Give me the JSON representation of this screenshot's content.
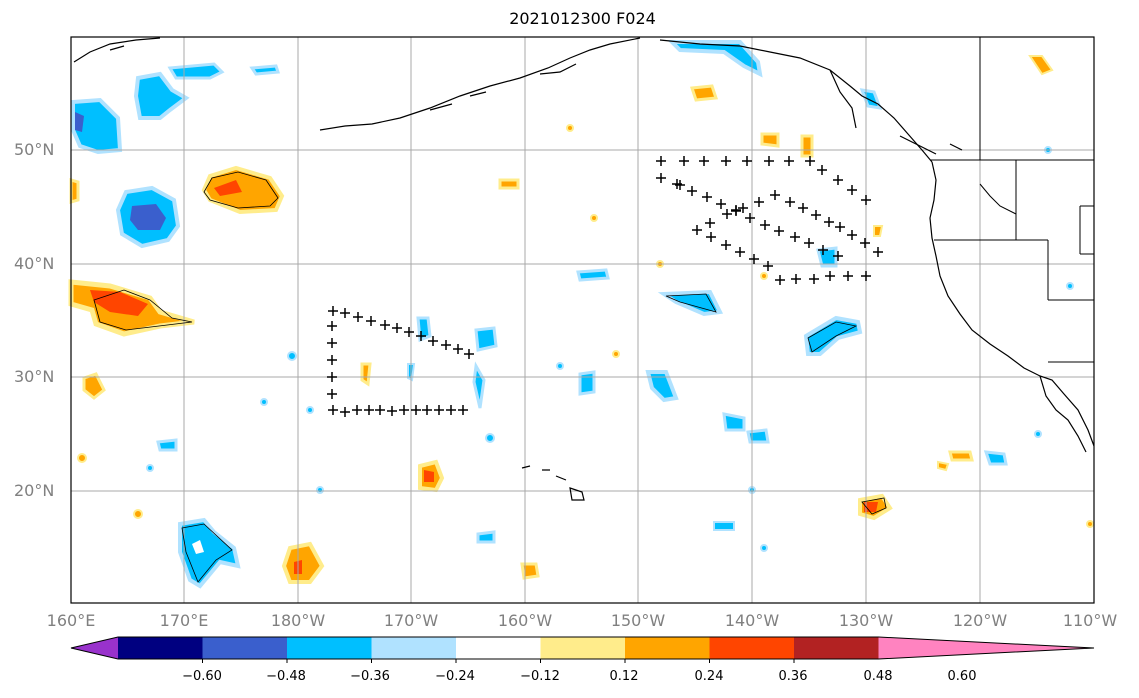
{
  "title": "2021012300 F024",
  "lat_labels": [
    "50°N",
    "40°N",
    "30°N",
    "20°N"
  ],
  "lon_labels": [
    "160°E",
    "170°E",
    "180°W",
    "170°W",
    "160°W",
    "150°W",
    "140°W",
    "130°W",
    "120°W",
    "110°W"
  ],
  "colorbar": {
    "colors": [
      "#9932cc",
      "#000080",
      "#3a5fcd",
      "#00bfff",
      "#b0e2ff",
      "#ffffff",
      "#ffec8b",
      "#ffa500",
      "#ff4500",
      "#b22222",
      "#ff83c0"
    ],
    "tick_labels": [
      "−0.60",
      "−0.48",
      "−0.36",
      "−0.24",
      "−0.12",
      "0.12",
      "0.24",
      "0.36",
      "0.48",
      "0.60"
    ]
  },
  "map": {
    "lon_range": [
      "160°E",
      "110°W"
    ],
    "lat_range": [
      "~10°N",
      "~60°N"
    ],
    "gridlines": true,
    "features": [
      "coastlines",
      "state borders",
      "filled contour anomalies",
      "plus-sign station markers"
    ]
  }
}
